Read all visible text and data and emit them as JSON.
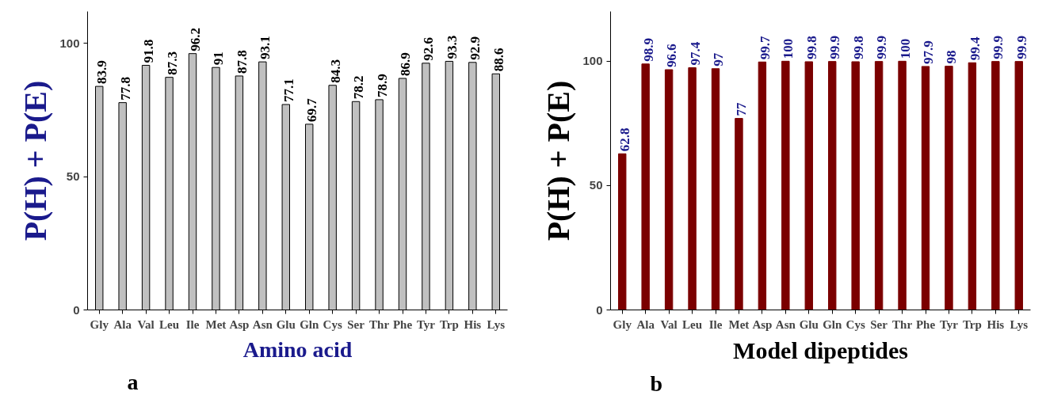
{
  "chart_data": [
    {
      "type": "bar",
      "xlabel": "Amino acid",
      "ylabel": "P(H) + P(E)",
      "categories": [
        "Gly",
        "Ala",
        "Val",
        "Leu",
        "Ile",
        "Met",
        "Asp",
        "Asn",
        "Glu",
        "Gln",
        "Cys",
        "Ser",
        "Thr",
        "Phe",
        "Tyr",
        "Trp",
        "His",
        "Lys"
      ],
      "values": [
        83.9,
        77.8,
        91.8,
        87.3,
        96.2,
        91,
        87.8,
        93.1,
        77.1,
        69.7,
        84.3,
        78.2,
        78.9,
        86.9,
        92.6,
        93.3,
        92.9,
        88.6
      ],
      "color": "#c0c0c0",
      "data_labels": true,
      "ylim": [
        0,
        112
      ],
      "yticks": [
        0,
        50,
        100
      ],
      "grid": false,
      "annotations": [
        "a"
      ]
    },
    {
      "type": "bar",
      "xlabel": "Model dipeptides",
      "ylabel": "P(H) + P(E)",
      "categories": [
        "Gly",
        "Ala",
        "Val",
        "Leu",
        "Ile",
        "Met",
        "Asp",
        "Asn",
        "Glu",
        "Gln",
        "Cys",
        "Ser",
        "Thr",
        "Phe",
        "Tyr",
        "Trp",
        "His",
        "Lys"
      ],
      "values": [
        62.8,
        98.9,
        96.6,
        97.4,
        97,
        77,
        99.7,
        100,
        99.8,
        99.9,
        99.8,
        99.9,
        100,
        97.9,
        98,
        99.4,
        99.9,
        99.9
      ],
      "color": "#7b0000",
      "data_labels": true,
      "ylim": [
        0,
        120
      ],
      "yticks": [
        0,
        50,
        100
      ],
      "grid": false,
      "annotations": [
        "b"
      ]
    }
  ]
}
